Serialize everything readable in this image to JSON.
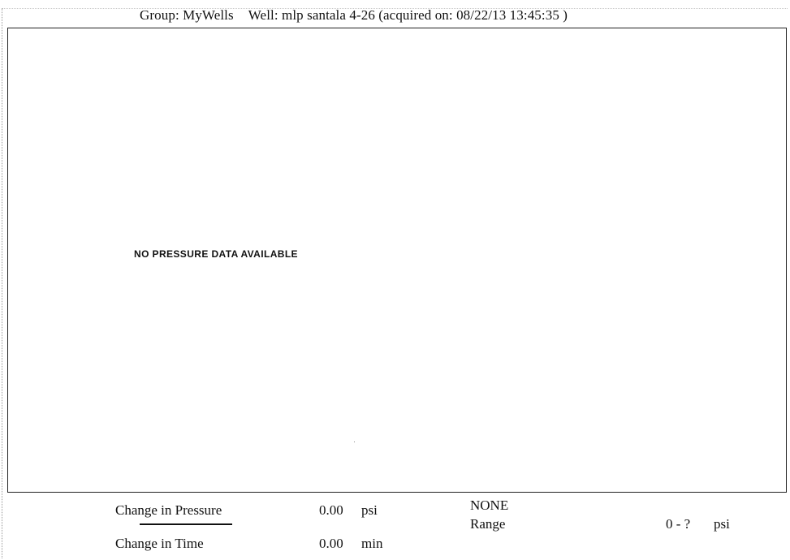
{
  "header": {
    "group": "Group: MyWells",
    "well": "Well: mlp santala 4-26 (acquired on: 08/22/13 13:45:35 )"
  },
  "plot": {
    "message": "NO PRESSURE DATA AVAILABLE"
  },
  "footer": {
    "pressure": {
      "label": "Change in Pressure",
      "value": "0.00",
      "unit": "psi"
    },
    "time": {
      "label": "Change in Time",
      "value": "0.00",
      "unit": "min"
    },
    "mode": "NONE",
    "range": {
      "label": "Range",
      "value": "0 - ?",
      "unit": "psi"
    }
  }
}
